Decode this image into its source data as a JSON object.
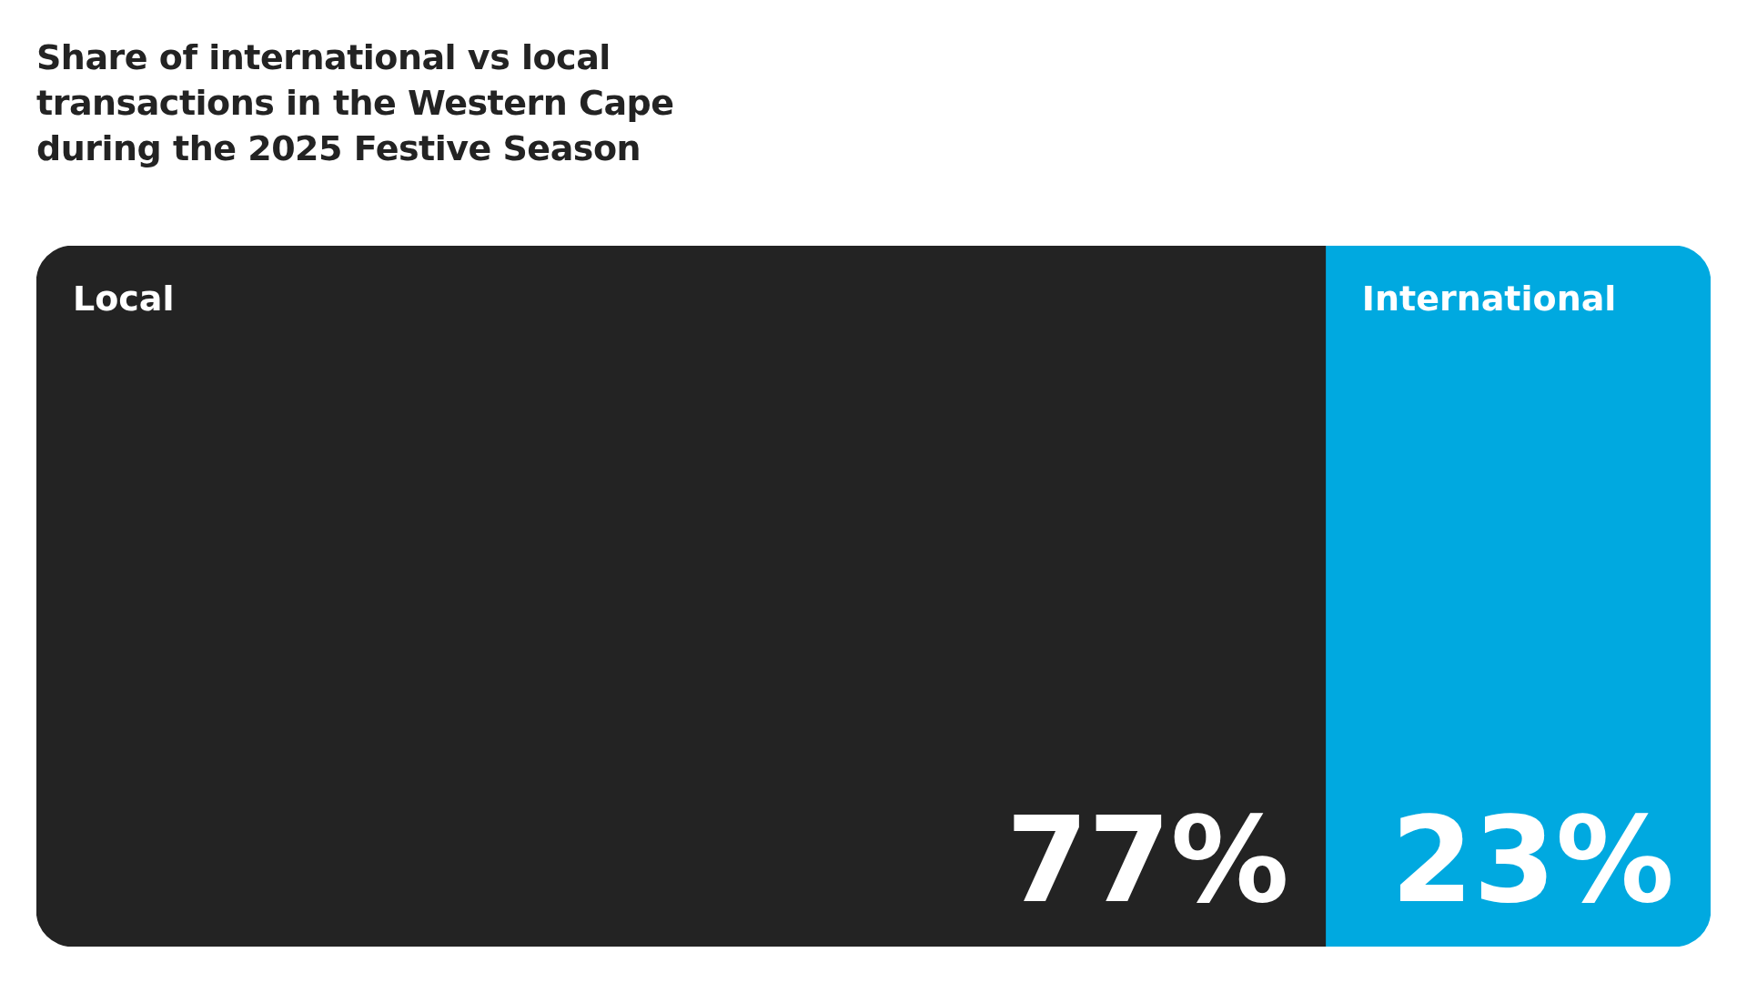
{
  "chart_data": {
    "type": "bar",
    "title": "Share of international vs local transactions in the Western Cape during the 2025 Festive Season",
    "orientation": "horizontal",
    "stacked": true,
    "categories": [
      null
    ],
    "xlim": [
      0,
      100
    ],
    "legend": false,
    "series": [
      {
        "name": "Local",
        "color": "#232323",
        "values": [
          77
        ],
        "value_labels": [
          "77%"
        ]
      },
      {
        "name": "International",
        "color": "#00a9e0",
        "values": [
          23
        ],
        "value_labels": [
          "23%"
        ]
      }
    ]
  }
}
